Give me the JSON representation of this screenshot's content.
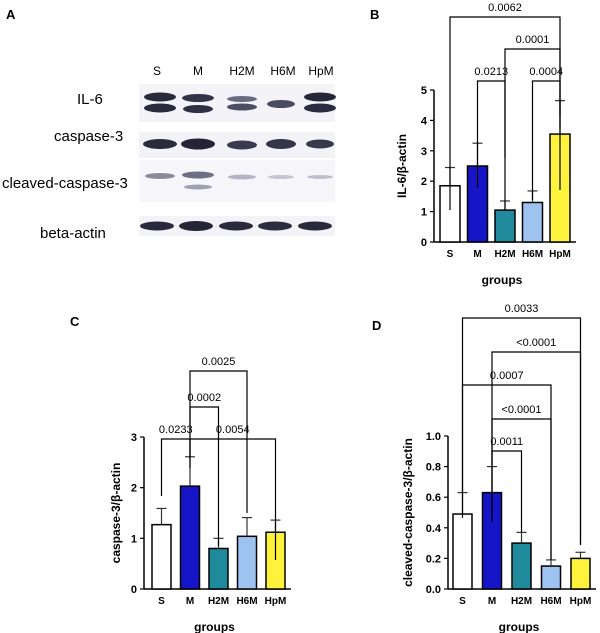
{
  "panel_A": {
    "letter": "A",
    "lanes": [
      "S",
      "M",
      "H2M",
      "H6M",
      "HpM"
    ],
    "rows": [
      "IL-6",
      "caspase-3",
      "cleaved-caspase-3",
      "beta-actin"
    ]
  },
  "chart_data": [
    {
      "panel": "B",
      "type": "bar",
      "categories": [
        "S",
        "M",
        "H2M",
        "H6M",
        "HpM"
      ],
      "values": [
        1.85,
        2.5,
        1.05,
        1.3,
        3.55
      ],
      "errors": [
        0.6,
        0.75,
        0.3,
        0.38,
        1.1
      ],
      "colors": [
        "#ffffff",
        "#1616c8",
        "#1e8a9c",
        "#9ec3f0",
        "#fff23c"
      ],
      "xlabel": "groups",
      "ylabel": "IL-6/β-actin",
      "ylim": [
        0,
        5
      ],
      "yticks": [
        0,
        1,
        2,
        3,
        4,
        5
      ],
      "brackets": [
        {
          "from": 0,
          "to": 4,
          "label": "0.0062"
        },
        {
          "from": 2,
          "to": 4,
          "label": "0.0001"
        },
        {
          "from": 1,
          "to": 2,
          "label": "0.0213"
        },
        {
          "from": 3,
          "to": 4,
          "label": "0.0004"
        }
      ]
    },
    {
      "panel": "C",
      "type": "bar",
      "categories": [
        "S",
        "M",
        "H2M",
        "H6M",
        "HpM"
      ],
      "values": [
        1.27,
        2.03,
        0.8,
        1.04,
        1.12
      ],
      "errors": [
        0.32,
        0.58,
        0.2,
        0.37,
        0.24
      ],
      "colors": [
        "#ffffff",
        "#1616c8",
        "#1e8a9c",
        "#9ec3f0",
        "#fff23c"
      ],
      "xlabel": "groups",
      "ylabel": "caspase-3/β-actin",
      "ylim": [
        0,
        3
      ],
      "yticks": [
        0,
        1,
        2,
        3
      ],
      "brackets": [
        {
          "from": 1,
          "to": 3,
          "label": "0.0025"
        },
        {
          "from": 1,
          "to": 2,
          "label": "0.0002"
        },
        {
          "from": 0,
          "to": 1,
          "label": "0.0233"
        },
        {
          "from": 1,
          "to": 4,
          "label": "0.0054"
        }
      ]
    },
    {
      "panel": "D",
      "type": "bar",
      "categories": [
        "S",
        "M",
        "H2M",
        "H6M",
        "HpM"
      ],
      "values": [
        0.49,
        0.63,
        0.3,
        0.15,
        0.2
      ],
      "errors": [
        0.14,
        0.17,
        0.07,
        0.04,
        0.04
      ],
      "colors": [
        "#ffffff",
        "#1616c8",
        "#1e8a9c",
        "#9ec3f0",
        "#fff23c"
      ],
      "xlabel": "groups",
      "ylabel": "cleaved-caspase-3/β-actin",
      "ylim": [
        0,
        1.0
      ],
      "yticks": [
        0,
        0.2,
        0.4,
        0.6,
        0.8,
        1.0
      ],
      "brackets": [
        {
          "from": 0,
          "to": 4,
          "label": "0.0033"
        },
        {
          "from": 1,
          "to": 4,
          "label": "<0.0001"
        },
        {
          "from": 0,
          "to": 3,
          "label": "0.0007"
        },
        {
          "from": 1,
          "to": 3,
          "label": "<0.0001"
        },
        {
          "from": 1,
          "to": 2,
          "label": "0.0011"
        }
      ]
    }
  ]
}
